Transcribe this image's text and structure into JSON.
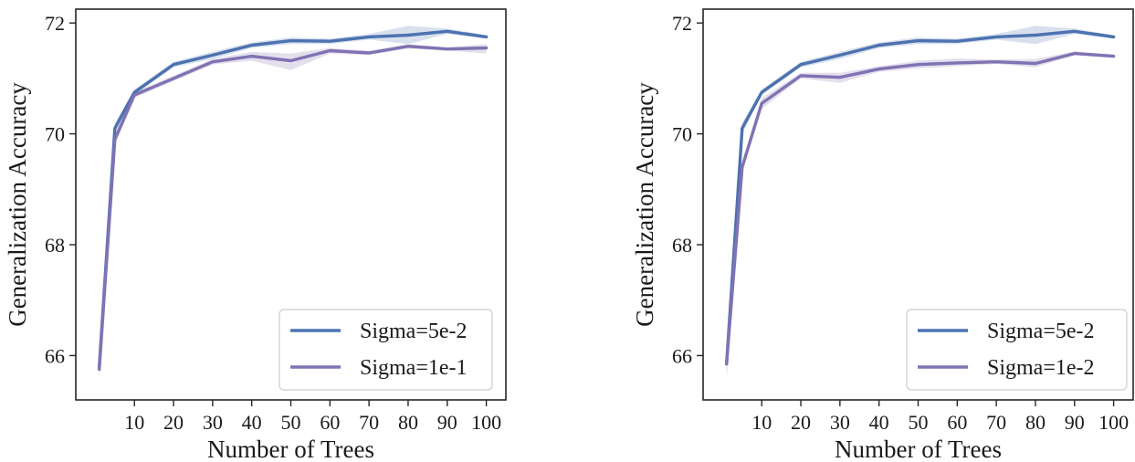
{
  "chart_data": [
    {
      "type": "line",
      "xlabel": "Number of Trees",
      "ylabel": "Generalization Accuracy",
      "xticks": [
        10,
        20,
        30,
        40,
        50,
        60,
        70,
        80,
        90,
        100
      ],
      "yticks": [
        66,
        68,
        70,
        72
      ],
      "xlim": [
        -5,
        105
      ],
      "ylim": [
        65.2,
        72.25
      ],
      "grid": false,
      "legend_position": "lower-right",
      "series": [
        {
          "name": "Sigma=5e-2",
          "color": "#4c72b0",
          "x": [
            1,
            5,
            10,
            20,
            30,
            40,
            50,
            60,
            70,
            80,
            90,
            100
          ],
          "y": [
            65.8,
            70.1,
            70.75,
            71.25,
            71.42,
            71.6,
            71.68,
            71.67,
            71.75,
            71.78,
            71.85,
            71.75
          ],
          "ci_low": [
            65.7,
            70.0,
            70.7,
            71.2,
            71.35,
            71.55,
            71.62,
            71.62,
            71.7,
            71.62,
            71.8,
            71.72
          ],
          "ci_high": [
            65.9,
            70.2,
            70.8,
            71.3,
            71.48,
            71.65,
            71.74,
            71.72,
            71.8,
            71.95,
            71.9,
            71.78
          ]
        },
        {
          "name": "Sigma=1e-1",
          "color": "#8172b3",
          "x": [
            1,
            5,
            10,
            20,
            30,
            40,
            50,
            60,
            70,
            80,
            90,
            100
          ],
          "y": [
            65.75,
            69.9,
            70.7,
            71.0,
            71.3,
            71.4,
            71.32,
            71.5,
            71.46,
            71.58,
            71.53,
            71.55
          ],
          "ci_low": [
            65.55,
            69.8,
            70.65,
            70.95,
            71.25,
            71.32,
            71.15,
            71.45,
            71.42,
            71.54,
            71.5,
            71.45
          ],
          "ci_high": [
            65.95,
            70.0,
            70.75,
            71.05,
            71.35,
            71.48,
            71.45,
            71.55,
            71.5,
            71.62,
            71.56,
            71.62
          ]
        }
      ]
    },
    {
      "type": "line",
      "xlabel": "Number of Trees",
      "ylabel": "Generalization Accuracy",
      "xticks": [
        10,
        20,
        30,
        40,
        50,
        60,
        70,
        80,
        90,
        100
      ],
      "yticks": [
        66,
        68,
        70,
        72
      ],
      "xlim": [
        -5,
        105
      ],
      "ylim": [
        65.2,
        72.25
      ],
      "grid": false,
      "legend_position": "lower-right",
      "series": [
        {
          "name": "Sigma=5e-2",
          "color": "#4c72b0",
          "x": [
            1,
            5,
            10,
            20,
            30,
            40,
            50,
            60,
            70,
            80,
            90,
            100
          ],
          "y": [
            65.85,
            70.1,
            70.75,
            71.25,
            71.42,
            71.6,
            71.68,
            71.67,
            71.75,
            71.78,
            71.85,
            71.75
          ],
          "ci_low": [
            65.75,
            70.0,
            70.7,
            71.2,
            71.35,
            71.55,
            71.62,
            71.62,
            71.7,
            71.62,
            71.8,
            71.72
          ],
          "ci_high": [
            65.95,
            70.2,
            70.8,
            71.3,
            71.48,
            71.65,
            71.74,
            71.72,
            71.8,
            71.95,
            71.9,
            71.78
          ]
        },
        {
          "name": "Sigma=1e-2",
          "color": "#8172b3",
          "x": [
            1,
            5,
            10,
            20,
            30,
            40,
            50,
            60,
            70,
            80,
            90,
            100
          ],
          "y": [
            65.85,
            69.4,
            70.55,
            71.05,
            71.02,
            71.17,
            71.25,
            71.28,
            71.3,
            71.27,
            71.45,
            71.4
          ],
          "ci_low": [
            65.55,
            69.3,
            70.45,
            71.0,
            70.92,
            71.12,
            71.18,
            71.22,
            71.26,
            71.2,
            71.42,
            71.37
          ],
          "ci_high": [
            66.1,
            69.5,
            70.65,
            71.1,
            71.1,
            71.22,
            71.32,
            71.36,
            71.34,
            71.35,
            71.49,
            71.43
          ]
        }
      ]
    }
  ]
}
